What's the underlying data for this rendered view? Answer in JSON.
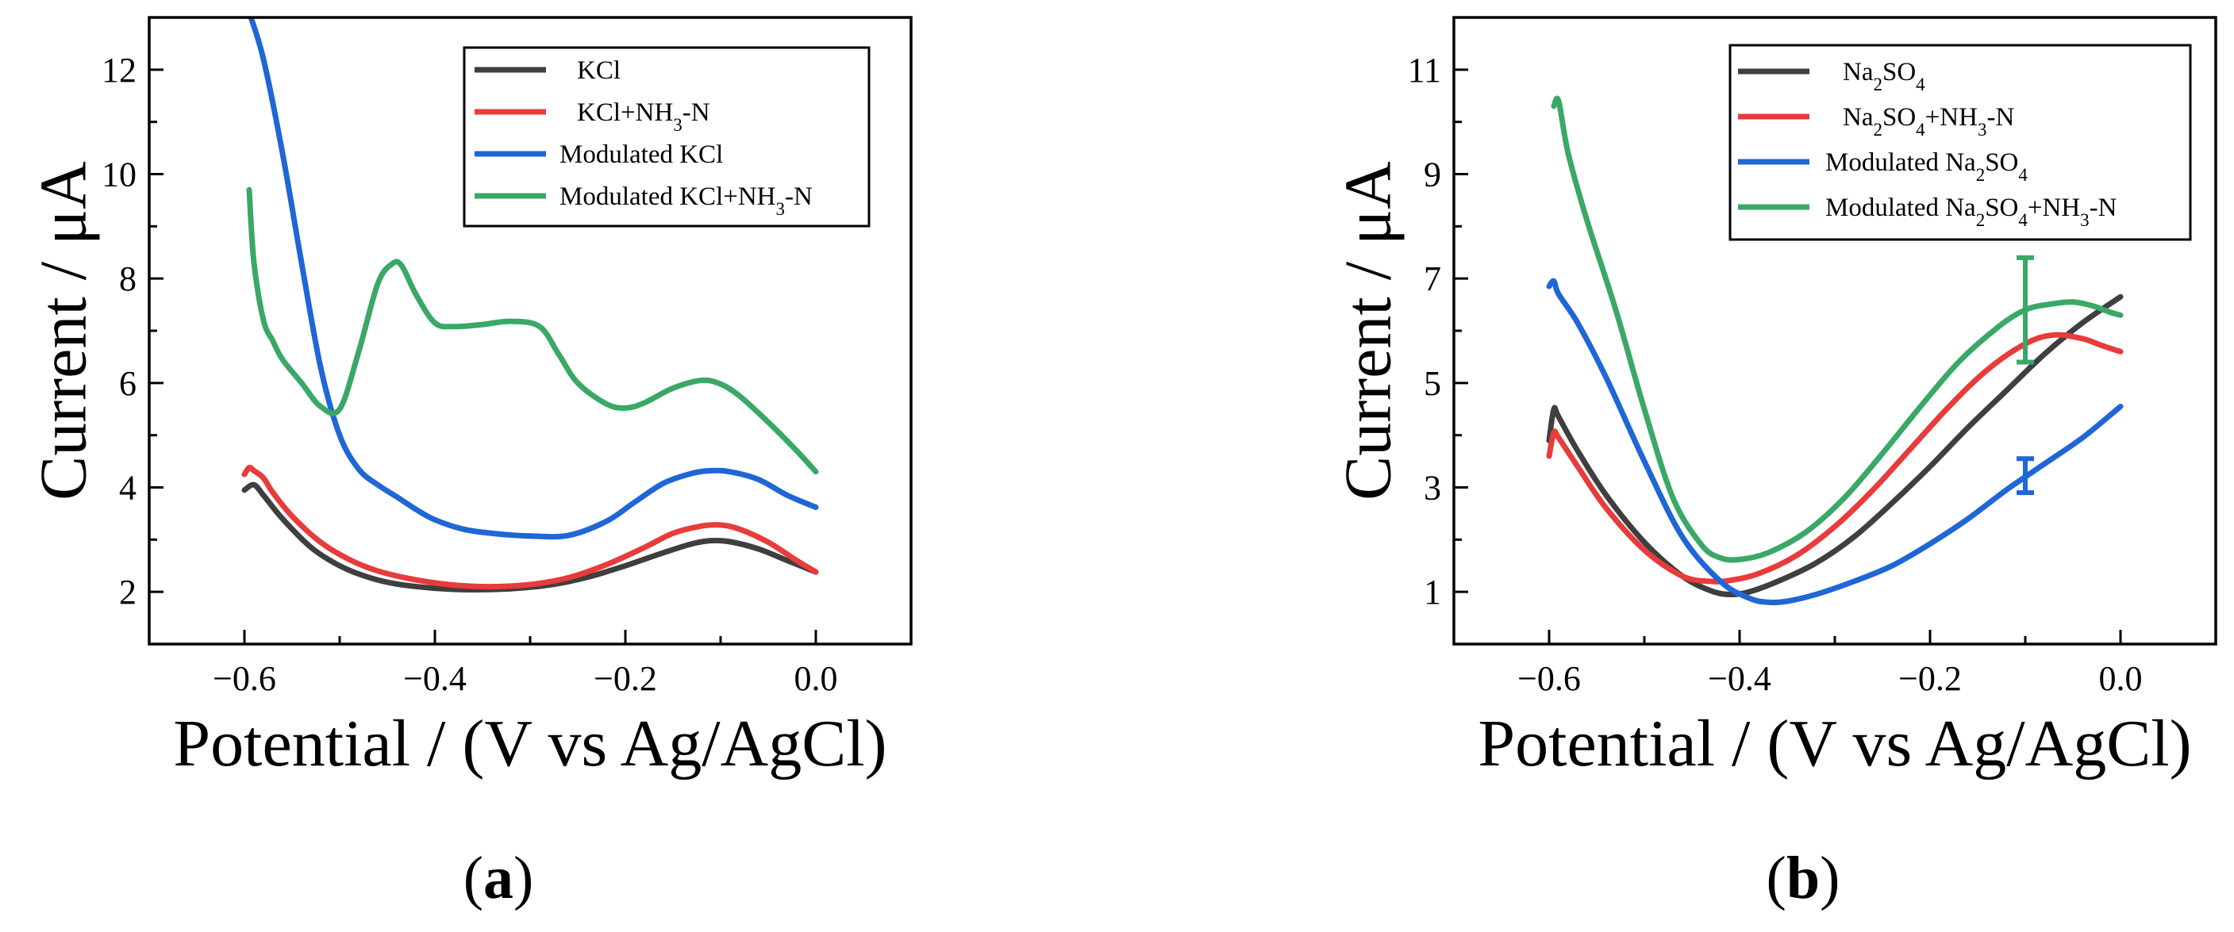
{
  "chart_data": [
    {
      "panel_label_open": "(",
      "panel_label": "a",
      "panel_label_close": ")",
      "type": "line",
      "xlabel": "Potential / (V vs Ag/AgCl)",
      "ylabel": "Current / μA",
      "xlim": [
        -0.7,
        0.1
      ],
      "ylim": [
        1,
        13
      ],
      "x_ticks": [
        -0.6,
        -0.4,
        -0.2,
        0.0
      ],
      "x_tick_labels": [
        "−0.6",
        "−0.4",
        "−0.2",
        "0.0"
      ],
      "y_ticks": [
        2,
        4,
        6,
        8,
        10,
        12
      ],
      "y_tick_labels": [
        "2",
        "4",
        "6",
        "8",
        "10",
        "12"
      ],
      "legend_position": "top-right",
      "series": [
        {
          "name": "KCl",
          "legend": [
            {
              "t": "KCl"
            }
          ],
          "color": "#3f3f3f",
          "x": [
            -0.6,
            -0.59,
            -0.58,
            -0.56,
            -0.53,
            -0.5,
            -0.47,
            -0.44,
            -0.4,
            -0.36,
            -0.32,
            -0.28,
            -0.24,
            -0.2,
            -0.16,
            -0.13,
            -0.11,
            -0.09,
            -0.06,
            -0.03,
            0.0
          ],
          "y": [
            3.95,
            4.05,
            3.85,
            3.4,
            2.85,
            2.5,
            2.28,
            2.15,
            2.07,
            2.04,
            2.06,
            2.13,
            2.28,
            2.5,
            2.75,
            2.92,
            2.98,
            2.96,
            2.82,
            2.6,
            2.38
          ]
        },
        {
          "name": "KCl+NH3-N",
          "legend": [
            {
              "t": "KCl+NH"
            },
            {
              "t": "3",
              "sub": true
            },
            {
              "t": "-N"
            }
          ],
          "color": "#e83b3b",
          "x": [
            -0.6,
            -0.595,
            -0.59,
            -0.58,
            -0.57,
            -0.55,
            -0.52,
            -0.49,
            -0.46,
            -0.42,
            -0.38,
            -0.34,
            -0.3,
            -0.26,
            -0.22,
            -0.18,
            -0.15,
            -0.12,
            -0.1,
            -0.08,
            -0.05,
            -0.02,
            0.0
          ],
          "y": [
            4.25,
            4.38,
            4.32,
            4.18,
            3.9,
            3.45,
            2.95,
            2.62,
            2.4,
            2.23,
            2.13,
            2.1,
            2.14,
            2.27,
            2.52,
            2.85,
            3.12,
            3.26,
            3.28,
            3.2,
            2.95,
            2.6,
            2.38
          ]
        },
        {
          "name": "Modulated KCl",
          "legend": [
            {
              "t": "Modulated KCl"
            }
          ],
          "color": "#1f66d6",
          "x": [
            -0.595,
            -0.58,
            -0.56,
            -0.54,
            -0.52,
            -0.5,
            -0.48,
            -0.46,
            -0.44,
            -0.42,
            -0.4,
            -0.37,
            -0.34,
            -0.3,
            -0.26,
            -0.22,
            -0.19,
            -0.16,
            -0.13,
            -0.11,
            -0.09,
            -0.06,
            -0.03,
            0.0
          ],
          "y": [
            13.1,
            12.2,
            10.4,
            8.3,
            6.3,
            5.0,
            4.35,
            4.05,
            3.82,
            3.58,
            3.38,
            3.2,
            3.12,
            3.07,
            3.08,
            3.35,
            3.72,
            4.08,
            4.27,
            4.32,
            4.3,
            4.15,
            3.85,
            3.62
          ]
        },
        {
          "name": "Modulated KCl+NH3-N",
          "legend": [
            {
              "t": "Modulated KCl+NH"
            },
            {
              "t": "3",
              "sub": true
            },
            {
              "t": "-N"
            }
          ],
          "color": "#3aa866",
          "x": [
            -0.595,
            -0.59,
            -0.58,
            -0.57,
            -0.56,
            -0.54,
            -0.52,
            -0.5,
            -0.48,
            -0.46,
            -0.445,
            -0.435,
            -0.42,
            -0.4,
            -0.38,
            -0.35,
            -0.32,
            -0.29,
            -0.27,
            -0.25,
            -0.22,
            -0.2,
            -0.18,
            -0.15,
            -0.12,
            -0.1,
            -0.08,
            -0.05,
            -0.02,
            0.0
          ],
          "y": [
            9.7,
            8.3,
            7.2,
            6.8,
            6.45,
            6.0,
            5.55,
            5.5,
            6.6,
            7.9,
            8.28,
            8.25,
            7.7,
            7.15,
            7.08,
            7.12,
            7.18,
            7.08,
            6.55,
            6.0,
            5.6,
            5.52,
            5.62,
            5.9,
            6.05,
            5.98,
            5.75,
            5.25,
            4.7,
            4.3
          ]
        }
      ]
    },
    {
      "panel_label_open": "(",
      "panel_label": "b",
      "panel_label_close": ")",
      "type": "line",
      "xlabel": "Potential / (V vs Ag/AgCl)",
      "ylabel": "Current / μA",
      "xlim": [
        -0.7,
        0.1
      ],
      "ylim": [
        0,
        12
      ],
      "x_ticks": [
        -0.6,
        -0.4,
        -0.2,
        0.0
      ],
      "x_tick_labels": [
        "−0.6",
        "−0.4",
        "−0.2",
        "0.0"
      ],
      "y_ticks": [
        1,
        3,
        5,
        7,
        9,
        11
      ],
      "y_tick_labels": [
        "1",
        "3",
        "5",
        "7",
        "9",
        "11"
      ],
      "legend_position": "top-right",
      "error_bars": [
        {
          "series": "Modulated Na2SO4+NH3-N",
          "x": -0.1,
          "low": 5.4,
          "high": 7.4,
          "color": "#3aa866"
        },
        {
          "series": "Modulated Na2SO4",
          "x": -0.1,
          "low": 2.9,
          "high": 3.55,
          "color": "#1f66d6"
        }
      ],
      "series": [
        {
          "name": "Na2SO4",
          "legend": [
            {
              "t": "Na"
            },
            {
              "t": "2",
              "sub": true
            },
            {
              "t": "SO"
            },
            {
              "t": "4",
              "sub": true
            }
          ],
          "color": "#3f3f3f",
          "x": [
            -0.6,
            -0.595,
            -0.59,
            -0.57,
            -0.54,
            -0.5,
            -0.46,
            -0.43,
            -0.41,
            -0.39,
            -0.36,
            -0.32,
            -0.28,
            -0.24,
            -0.2,
            -0.16,
            -0.12,
            -0.08,
            -0.04,
            0.0
          ],
          "y": [
            3.9,
            4.5,
            4.35,
            3.7,
            2.85,
            1.95,
            1.3,
            1.02,
            0.95,
            1.0,
            1.2,
            1.55,
            2.05,
            2.7,
            3.4,
            4.15,
            4.85,
            5.55,
            6.15,
            6.65
          ]
        },
        {
          "name": "Na2SO4+NH3-N",
          "legend": [
            {
              "t": "Na"
            },
            {
              "t": "2",
              "sub": true
            },
            {
              "t": "SO"
            },
            {
              "t": "4",
              "sub": true
            },
            {
              "t": "+NH"
            },
            {
              "t": "3",
              "sub": true
            },
            {
              "t": "-N"
            }
          ],
          "color": "#e83b3b",
          "x": [
            -0.6,
            -0.595,
            -0.59,
            -0.57,
            -0.54,
            -0.5,
            -0.46,
            -0.43,
            -0.41,
            -0.38,
            -0.34,
            -0.3,
            -0.26,
            -0.22,
            -0.18,
            -0.14,
            -0.1,
            -0.07,
            -0.04,
            -0.02,
            0.0
          ],
          "y": [
            3.6,
            4.05,
            3.95,
            3.4,
            2.6,
            1.8,
            1.3,
            1.2,
            1.22,
            1.35,
            1.7,
            2.25,
            2.95,
            3.75,
            4.55,
            5.25,
            5.75,
            5.92,
            5.85,
            5.72,
            5.6
          ]
        },
        {
          "name": "Modulated Na2SO4",
          "legend": [
            {
              "t": "Modulated Na"
            },
            {
              "t": "2",
              "sub": true
            },
            {
              "t": "SO"
            },
            {
              "t": "4",
              "sub": true
            }
          ],
          "color": "#1f66d6",
          "x": [
            -0.6,
            -0.595,
            -0.59,
            -0.57,
            -0.54,
            -0.5,
            -0.46,
            -0.42,
            -0.39,
            -0.37,
            -0.35,
            -0.32,
            -0.28,
            -0.24,
            -0.2,
            -0.16,
            -0.12,
            -0.08,
            -0.04,
            0.0
          ],
          "y": [
            6.85,
            6.95,
            6.7,
            6.15,
            5.1,
            3.5,
            2.05,
            1.2,
            0.88,
            0.8,
            0.82,
            0.95,
            1.2,
            1.5,
            1.92,
            2.4,
            2.95,
            3.45,
            3.95,
            4.55
          ]
        },
        {
          "name": "Modulated Na2SO4+NH3-N",
          "legend": [
            {
              "t": "Modulated Na"
            },
            {
              "t": "2",
              "sub": true
            },
            {
              "t": "SO"
            },
            {
              "t": "4",
              "sub": true
            },
            {
              "t": "+NH"
            },
            {
              "t": "3",
              "sub": true
            },
            {
              "t": "-N"
            }
          ],
          "color": "#3aa866",
          "x": [
            -0.595,
            -0.59,
            -0.58,
            -0.56,
            -0.53,
            -0.5,
            -0.47,
            -0.44,
            -0.42,
            -0.4,
            -0.37,
            -0.33,
            -0.29,
            -0.25,
            -0.21,
            -0.17,
            -0.13,
            -0.1,
            -0.07,
            -0.05,
            -0.03,
            -0.01,
            0.0
          ],
          "y": [
            10.3,
            10.4,
            9.4,
            8.1,
            6.4,
            4.5,
            2.8,
            1.9,
            1.65,
            1.62,
            1.75,
            2.15,
            2.8,
            3.65,
            4.55,
            5.4,
            6.05,
            6.4,
            6.52,
            6.55,
            6.48,
            6.35,
            6.3
          ]
        }
      ]
    }
  ]
}
